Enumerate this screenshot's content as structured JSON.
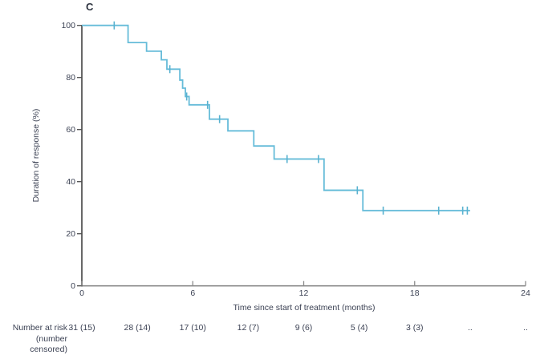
{
  "page": {
    "background": "#ffffff",
    "text_color": "#3c4254"
  },
  "chart_data": {
    "type": "line",
    "subtype": "kaplan-meier-step",
    "panel_label": "C",
    "xlabel": "Time since start of treatment (months)",
    "ylabel": "Duration of response (%)",
    "xlim": [
      0,
      24
    ],
    "ylim": [
      0,
      100
    ],
    "xticks": [
      "0",
      "6",
      "12",
      "18",
      "24"
    ],
    "xtick_values": [
      0,
      6,
      12,
      18,
      24
    ],
    "yticks": [
      "0",
      "20",
      "40",
      "60",
      "80",
      "100"
    ],
    "ytick_values": [
      0,
      20,
      40,
      60,
      80,
      100
    ],
    "grid": false,
    "legend": "none",
    "line_color": "#66bcd9",
    "censor_color": "#59b2d0",
    "x_axis_color": "#8c8c8c",
    "y_axis_color": "#4d4d4d",
    "series": [
      {
        "name": "Duration of response",
        "steps": [
          {
            "t": 0,
            "pct": 100
          },
          {
            "t": 2.5,
            "pct": 93.4
          },
          {
            "t": 3.5,
            "pct": 90.1
          },
          {
            "t": 4.3,
            "pct": 86.8
          },
          {
            "t": 4.6,
            "pct": 83.2
          },
          {
            "t": 5.3,
            "pct": 79.0
          },
          {
            "t": 5.45,
            "pct": 75.9
          },
          {
            "t": 5.6,
            "pct": 72.7
          },
          {
            "t": 5.8,
            "pct": 69.5
          },
          {
            "t": 6.9,
            "pct": 64.0
          },
          {
            "t": 7.9,
            "pct": 59.5
          },
          {
            "t": 9.3,
            "pct": 53.7
          },
          {
            "t": 10.4,
            "pct": 48.7
          },
          {
            "t": 13.1,
            "pct": 36.7
          },
          {
            "t": 15.2,
            "pct": 28.9
          }
        ],
        "end_t": 21.0,
        "censors": [
          {
            "t": 1.75,
            "pct": 100
          },
          {
            "t": 4.76,
            "pct": 83.2
          },
          {
            "t": 5.67,
            "pct": 72.7
          },
          {
            "t": 6.8,
            "pct": 69.5
          },
          {
            "t": 7.45,
            "pct": 64.0
          },
          {
            "t": 11.1,
            "pct": 48.7
          },
          {
            "t": 12.8,
            "pct": 48.7
          },
          {
            "t": 14.9,
            "pct": 36.7
          },
          {
            "t": 16.3,
            "pct": 28.9
          },
          {
            "t": 19.3,
            "pct": 28.9
          },
          {
            "t": 20.6,
            "pct": 28.9
          },
          {
            "t": 20.85,
            "pct": 28.9
          }
        ]
      }
    ],
    "at_risk": {
      "label_line1": "Number at risk",
      "label_line2": "(number censored)",
      "times": [
        0,
        3,
        6,
        9,
        12,
        15,
        18,
        21,
        24
      ],
      "values": [
        "31 (15)",
        "28 (14)",
        "17 (10)",
        "12 (7)",
        "9 (6)",
        "5 (4)",
        "3 (3)",
        "..",
        ".."
      ]
    }
  }
}
